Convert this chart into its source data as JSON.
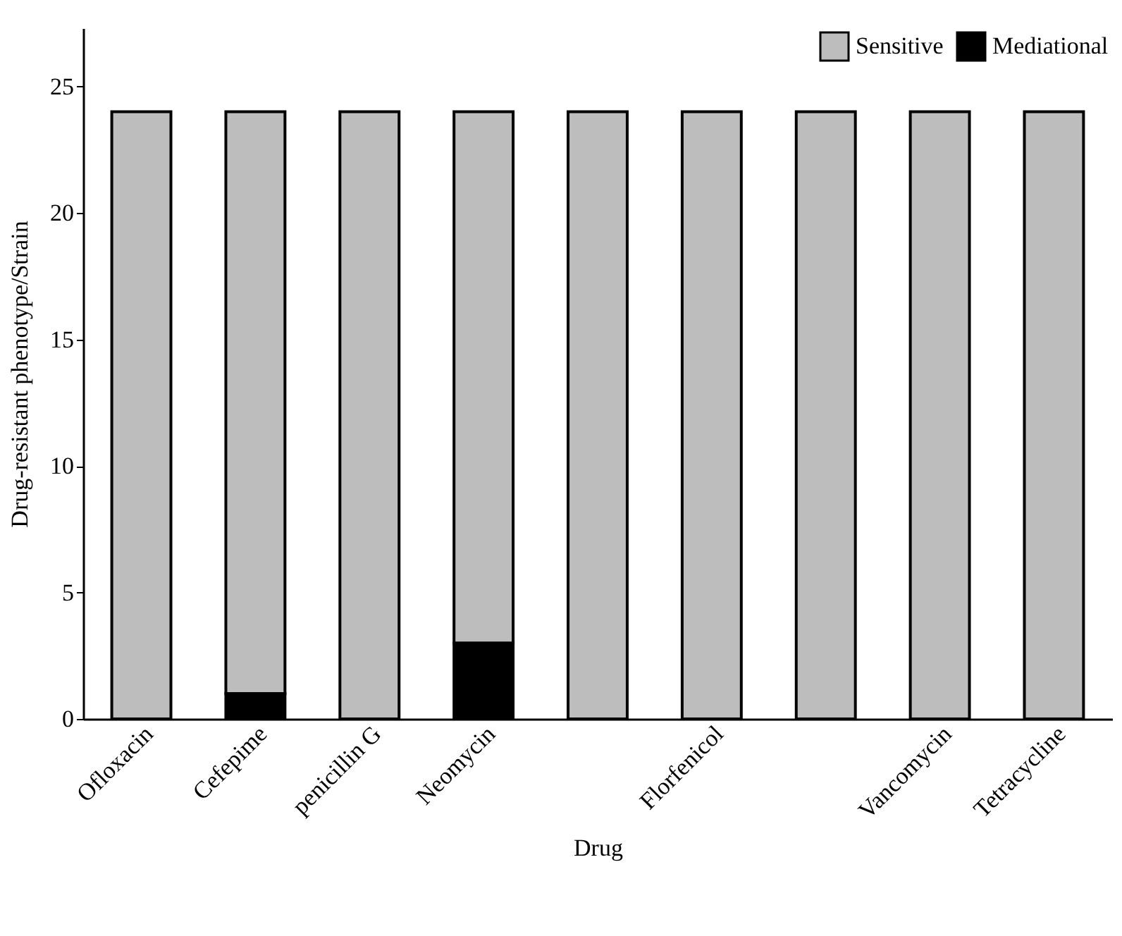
{
  "chart_data": {
    "type": "bar",
    "stacked": true,
    "xlabel": "Drug",
    "ylabel": "Drug-resistant phenotype/Strain",
    "categories": [
      "Ofloxacin",
      "Cefepime",
      "penicillin G",
      "Neomycin",
      null,
      "Florfenicol",
      null,
      "Vancomycin",
      "Tetracycline"
    ],
    "series": [
      {
        "name": "Mediational",
        "color": "#000000",
        "values": [
          0,
          1,
          0,
          3,
          0,
          0,
          0,
          0,
          0
        ]
      },
      {
        "name": "Sensitive",
        "color": "#bdbdbd",
        "values": [
          24,
          23,
          24,
          21,
          24,
          24,
          24,
          24,
          24
        ]
      }
    ],
    "ylim": [
      0,
      27.3
    ],
    "yticks": [
      0,
      5,
      10,
      15,
      20,
      25
    ],
    "grid": false,
    "legend": "top right"
  }
}
